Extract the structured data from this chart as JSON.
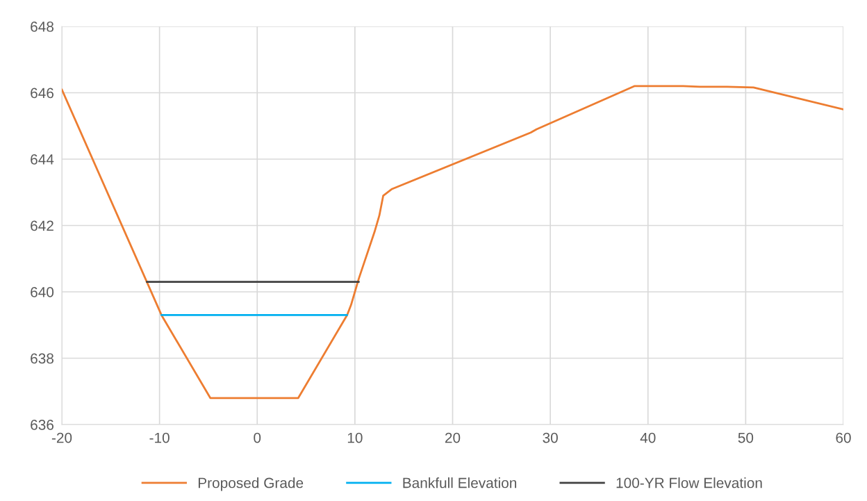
{
  "chart_data": {
    "type": "line",
    "series": [
      {
        "name": "Proposed Grade",
        "color": "#ed7d31",
        "x": [
          -20,
          -9.8,
          -4.8,
          4.2,
          9.2,
          9.6,
          10.4,
          12.0,
          12.5,
          12.9,
          13.8,
          28.0,
          28.6,
          38.6,
          43.6,
          45.3,
          48.1,
          50.8,
          60
        ],
        "values": [
          646.1,
          639.3,
          636.8,
          636.8,
          639.3,
          639.6,
          640.4,
          641.8,
          642.3,
          642.9,
          643.1,
          644.8,
          644.9,
          646.2,
          646.2,
          646.18,
          646.18,
          646.16,
          645.5
        ]
      },
      {
        "name": "Bankfull Elevation",
        "color": "#00b0f0",
        "x": [
          -9.8,
          9.2
        ],
        "values": [
          639.3,
          639.3
        ]
      },
      {
        "name": "100-YR Flow Elevation",
        "color": "#404040",
        "x": [
          -11.3,
          10.4
        ],
        "values": [
          640.3,
          640.3
        ]
      }
    ],
    "xlim": [
      -20,
      60
    ],
    "xticks": [
      -20,
      -10,
      0,
      10,
      20,
      30,
      40,
      50,
      60
    ],
    "ylim": [
      636,
      648
    ],
    "yticks": [
      636,
      638,
      640,
      642,
      644,
      646,
      648
    ],
    "grid": true,
    "legend": "bottom",
    "marker": "none",
    "line_style": "solid"
  }
}
